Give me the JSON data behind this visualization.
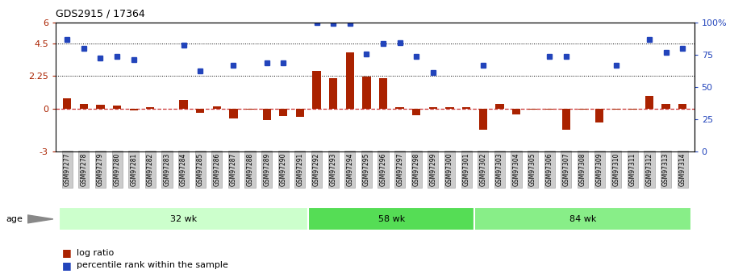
{
  "title": "GDS2915 / 17364",
  "samples": [
    "GSM97277",
    "GSM97278",
    "GSM97279",
    "GSM97280",
    "GSM97281",
    "GSM97282",
    "GSM97283",
    "GSM97284",
    "GSM97285",
    "GSM97286",
    "GSM97287",
    "GSM97288",
    "GSM97289",
    "GSM97290",
    "GSM97291",
    "GSM97292",
    "GSM97293",
    "GSM97294",
    "GSM97295",
    "GSM97296",
    "GSM97297",
    "GSM97298",
    "GSM97299",
    "GSM97300",
    "GSM97301",
    "GSM97302",
    "GSM97303",
    "GSM97304",
    "GSM97305",
    "GSM97306",
    "GSM97307",
    "GSM97308",
    "GSM97309",
    "GSM97310",
    "GSM97311",
    "GSM97312",
    "GSM97313",
    "GSM97314"
  ],
  "log_ratio": [
    0.7,
    0.3,
    0.25,
    0.2,
    -0.15,
    0.1,
    -0.05,
    0.6,
    -0.3,
    0.15,
    -0.7,
    -0.1,
    -0.8,
    -0.55,
    -0.6,
    2.6,
    2.1,
    3.9,
    2.2,
    2.1,
    0.1,
    -0.5,
    0.1,
    0.1,
    0.1,
    -1.5,
    0.3,
    -0.4,
    -0.1,
    -0.1,
    -1.5,
    -0.1,
    -1.0,
    -0.1,
    -0.1,
    0.9,
    0.3,
    0.3
  ],
  "percentile": [
    4.8,
    4.2,
    3.5,
    3.6,
    3.4,
    null,
    null,
    4.4,
    2.6,
    null,
    3.0,
    null,
    3.2,
    3.2,
    null,
    6.0,
    5.9,
    5.9,
    3.8,
    4.5,
    4.6,
    3.6,
    2.5,
    null,
    null,
    3.0,
    null,
    null,
    null,
    3.6,
    3.6,
    null,
    null,
    3.0,
    null,
    4.8,
    3.9,
    4.2
  ],
  "groups": [
    {
      "label": "32 wk",
      "start": 0,
      "end": 15,
      "color": "#ccffcc"
    },
    {
      "label": "58 wk",
      "start": 15,
      "end": 25,
      "color": "#55dd55"
    },
    {
      "label": "84 wk",
      "start": 25,
      "end": 38,
      "color": "#88ee88"
    }
  ],
  "ylim_left": [
    -3,
    6
  ],
  "ylim_right": [
    0,
    100
  ],
  "yticks_left": [
    -3,
    0,
    2.25,
    4.5,
    6
  ],
  "yticks_left_labels": [
    "-3",
    "0",
    "2.25",
    "4.5",
    "6"
  ],
  "yticks_right": [
    0,
    25,
    50,
    75,
    100
  ],
  "yticks_right_labels": [
    "0",
    "25",
    "50",
    "75",
    "100%"
  ],
  "hlines": [
    4.5,
    2.25
  ],
  "bar_color": "#aa2200",
  "dot_color": "#2244bb",
  "zero_color": "#cc3333",
  "tick_box_color": "#cccccc",
  "tick_box_edge": "#999999",
  "legend_bar_label": "log ratio",
  "legend_dot_label": "percentile rank within the sample",
  "age_label": "age",
  "background_color": "#ffffff"
}
